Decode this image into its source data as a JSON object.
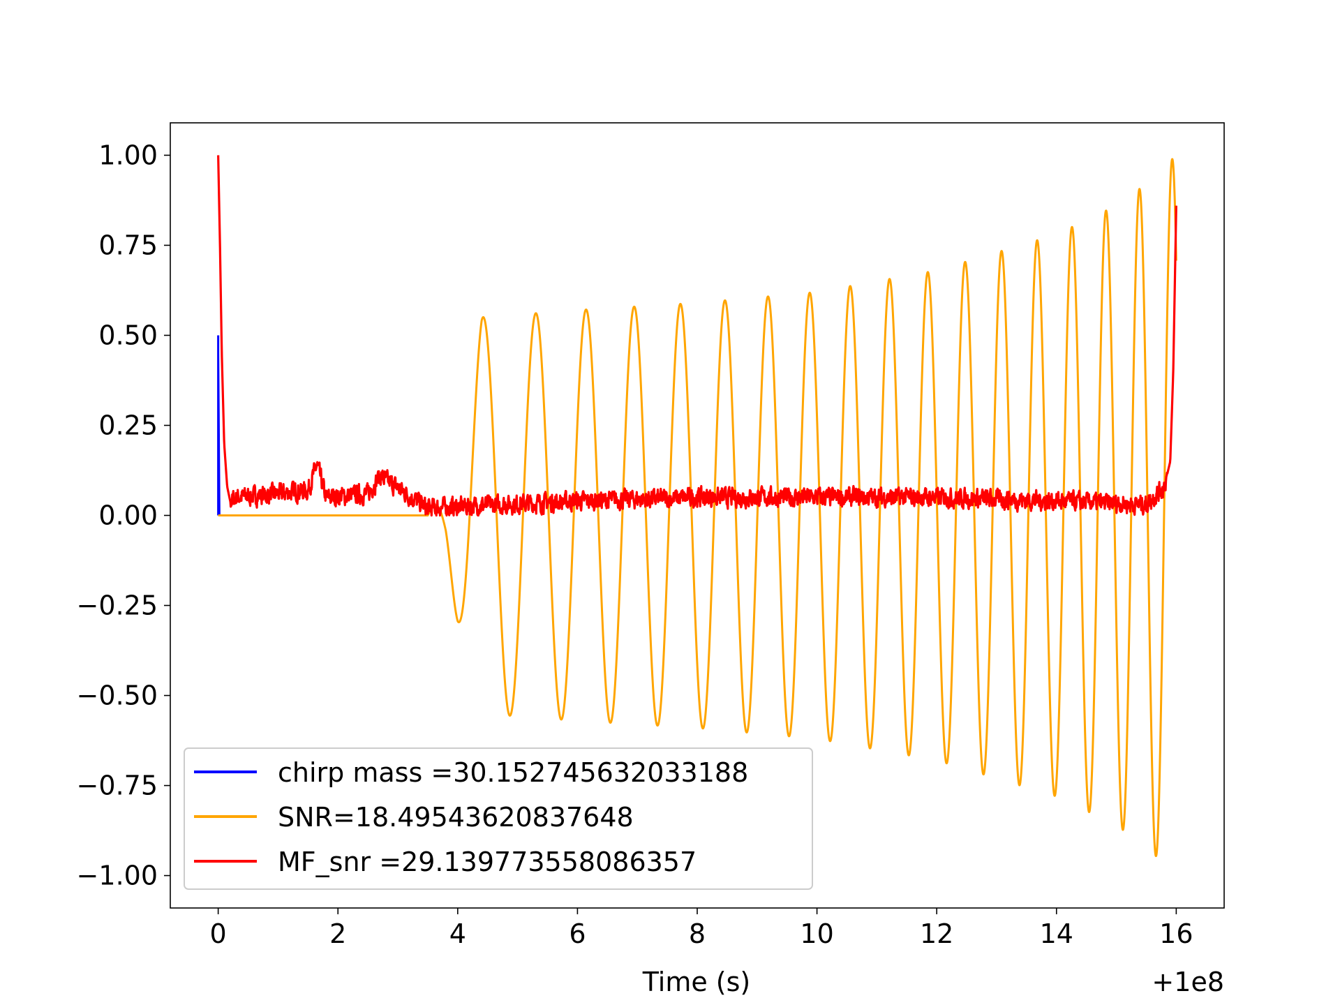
{
  "chart_data": {
    "type": "line",
    "title": "",
    "xlabel": "Time (s)",
    "ylabel": "",
    "x_offset_label": "+1e8",
    "xlim": [
      -0.8,
      16.8
    ],
    "ylim": [
      -1.09,
      1.09
    ],
    "xticks": [
      0,
      2,
      4,
      6,
      8,
      10,
      12,
      14,
      16
    ],
    "xtick_labels": [
      "0",
      "2",
      "4",
      "6",
      "8",
      "10",
      "12",
      "14",
      "16"
    ],
    "yticks": [
      1.0,
      0.75,
      0.5,
      0.25,
      0.0,
      -0.25,
      -0.5,
      -0.75,
      -1.0
    ],
    "ytick_labels": [
      "1.00",
      "0.75",
      "0.50",
      "0.25",
      "0.00",
      "−0.25",
      "−0.50",
      "−0.75",
      "−1.00"
    ],
    "grid": false,
    "legend_position": "lower-left",
    "series": [
      {
        "name": "chirp mass =30.152745632033188",
        "color": "#0000ff",
        "shape": "spike",
        "x": [
          0.0,
          0.0,
          0.0,
          0.02,
          0.02
        ],
        "y": [
          0.0,
          0.5,
          0.45,
          0.0,
          0.0
        ]
      },
      {
        "name": "SNR=18.49543620837648",
        "color": "#ffa500",
        "shape": "chirp",
        "onset": 3.5,
        "rise_end": 4.4,
        "end": 16.0,
        "envelope_x": [
          0.0,
          3.5,
          3.8,
          4.0,
          4.2,
          4.4,
          6.0,
          8.0,
          10.0,
          12.0,
          14.0,
          15.0,
          15.5,
          16.0
        ],
        "envelope_y": [
          0.0,
          0.0,
          0.1,
          0.3,
          0.45,
          0.55,
          0.57,
          0.59,
          0.62,
          0.68,
          0.78,
          0.86,
          0.92,
          1.0
        ]
      },
      {
        "name": "MF_snr =29.139773558086357",
        "color": "#ff0000",
        "shape": "noise",
        "x": [
          0.0,
          0.03,
          0.06,
          0.1,
          0.15,
          0.2,
          0.3,
          1.0,
          1.5,
          1.65,
          1.8,
          2.5,
          2.7,
          3.5,
          6.0,
          8.0,
          10.0,
          12.0,
          14.0,
          15.5,
          15.8,
          15.9,
          15.95,
          16.0
        ],
        "y": [
          1.0,
          0.75,
          0.45,
          0.2,
          0.08,
          0.04,
          0.05,
          0.06,
          0.07,
          0.14,
          0.05,
          0.06,
          0.11,
          0.02,
          0.04,
          0.05,
          0.05,
          0.05,
          0.04,
          0.03,
          0.08,
          0.15,
          0.4,
          0.86
        ]
      }
    ]
  }
}
